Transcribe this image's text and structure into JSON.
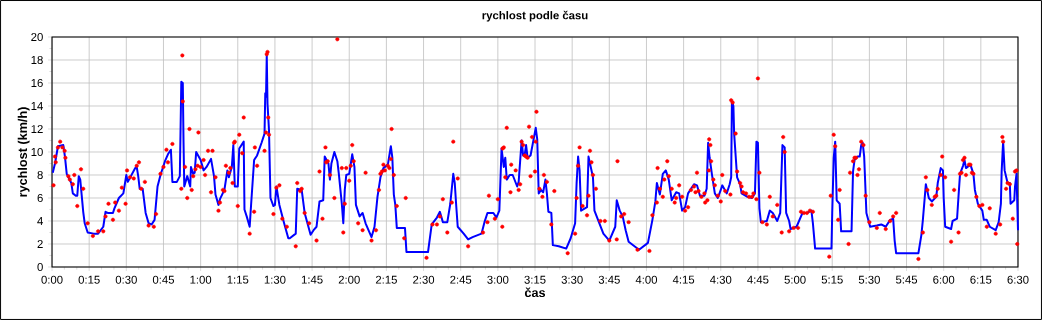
{
  "chart_data": {
    "type": "line",
    "title": "rychlost podle času",
    "xlabel": "čas",
    "ylabel": "rychlost (km/h)",
    "xlim": [
      0,
      6.5
    ],
    "ylim": [
      0,
      20
    ],
    "xticks": [
      {
        "value": 0,
        "label": "0:00"
      },
      {
        "value": 0.25,
        "label": "0:15"
      },
      {
        "value": 0.5,
        "label": "0:30"
      },
      {
        "value": 0.75,
        "label": "0:45"
      },
      {
        "value": 1,
        "label": "1:00"
      },
      {
        "value": 1.25,
        "label": "1:15"
      },
      {
        "value": 1.5,
        "label": "1:30"
      },
      {
        "value": 1.75,
        "label": "1:45"
      },
      {
        "value": 2,
        "label": "2:00"
      },
      {
        "value": 2.25,
        "label": "2:15"
      },
      {
        "value": 2.5,
        "label": "2:30"
      },
      {
        "value": 2.75,
        "label": "2:45"
      },
      {
        "value": 3,
        "label": "3:00"
      },
      {
        "value": 3.25,
        "label": "3:15"
      },
      {
        "value": 3.5,
        "label": "3:30"
      },
      {
        "value": 3.75,
        "label": "3:45"
      },
      {
        "value": 4,
        "label": "4:00"
      },
      {
        "value": 4.25,
        "label": "4:15"
      },
      {
        "value": 4.5,
        "label": "4:30"
      },
      {
        "value": 4.75,
        "label": "4:45"
      },
      {
        "value": 5,
        "label": "5:00"
      },
      {
        "value": 5.25,
        "label": "5:15"
      },
      {
        "value": 5.5,
        "label": "5:30"
      },
      {
        "value": 5.75,
        "label": "5:45"
      },
      {
        "value": 6,
        "label": "6:00"
      },
      {
        "value": 6.25,
        "label": "6:15"
      },
      {
        "value": 6.5,
        "label": "6:30"
      }
    ],
    "yticks": [
      0,
      2,
      4,
      6,
      8,
      10,
      12,
      14,
      16,
      18,
      20
    ],
    "grid": true,
    "series": [
      {
        "color": "#0000ff",
        "line_style": "solid",
        "x": [
          0.005,
          0.02,
          0.04,
          0.076,
          0.087,
          0.099,
          0.13,
          0.14,
          0.16,
          0.17,
          0.18,
          0.19,
          0.21,
          0.22,
          0.24,
          0.28,
          0.31,
          0.345,
          0.36,
          0.375,
          0.41,
          0.42,
          0.45,
          0.48,
          0.5,
          0.51,
          0.56,
          0.57,
          0.58,
          0.59,
          0.61,
          0.63,
          0.65,
          0.67,
          0.69,
          0.71,
          0.73,
          0.76,
          0.78,
          0.8,
          0.81,
          0.84,
          0.86,
          0.87,
          0.88,
          0.885,
          0.89,
          0.91,
          0.93,
          0.935,
          0.95,
          0.96,
          0.97,
          1.0,
          1.02,
          1.04,
          1.07,
          1.09,
          1.1,
          1.12,
          1.13,
          1.16,
          1.18,
          1.19,
          1.21,
          1.22,
          1.23,
          1.25,
          1.26,
          1.29,
          1.295,
          1.31,
          1.33,
          1.34,
          1.36,
          1.38,
          1.41,
          1.43,
          1.435,
          1.44,
          1.445,
          1.45,
          1.46,
          1.47,
          1.49,
          1.5,
          1.51,
          1.53,
          1.56,
          1.59,
          1.6,
          1.64,
          1.65,
          1.68,
          1.7,
          1.74,
          1.76,
          1.78,
          1.8,
          1.825,
          1.835,
          1.86,
          1.87,
          1.88,
          1.9,
          1.92,
          1.93,
          1.95,
          1.96,
          1.97,
          1.98,
          2.0,
          2.02,
          2.035,
          2.045,
          2.07,
          2.09,
          2.11,
          2.15,
          2.17,
          2.19,
          2.21,
          2.23,
          2.26,
          2.28,
          2.29,
          2.3,
          2.31,
          2.32,
          2.375,
          2.385,
          2.53,
          2.555,
          2.59,
          2.61,
          2.63,
          2.66,
          2.68,
          2.7,
          2.71,
          2.72,
          2.73,
          2.77,
          2.8,
          2.83,
          2.89,
          2.91,
          2.93,
          2.97,
          2.99,
          3.01,
          3.025,
          3.04,
          3.05,
          3.06,
          3.08,
          3.1,
          3.13,
          3.14,
          3.16,
          3.17,
          3.18,
          3.19,
          3.2,
          3.22,
          3.255,
          3.265,
          3.275,
          3.29,
          3.305,
          3.32,
          3.33,
          3.34,
          3.36,
          3.37,
          3.41,
          3.46,
          3.49,
          3.52,
          3.53,
          3.54,
          3.55,
          3.56,
          3.6,
          3.61,
          3.62,
          3.64,
          3.65,
          3.68,
          3.71,
          3.75,
          3.79,
          3.8,
          3.82,
          3.84,
          3.86,
          3.88,
          3.95,
          4.01,
          4.04,
          4.06,
          4.07,
          4.09,
          4.11,
          4.13,
          4.15,
          4.17,
          4.2,
          4.22,
          4.24,
          4.26,
          4.28,
          4.32,
          4.34,
          4.36,
          4.39,
          4.405,
          4.415,
          4.425,
          4.44,
          4.46,
          4.48,
          4.5,
          4.51,
          4.54,
          4.56,
          4.57,
          4.575,
          4.585,
          4.59,
          4.61,
          4.63,
          4.64,
          4.68,
          4.71,
          4.73,
          4.74,
          4.75,
          4.76,
          4.77,
          4.81,
          4.83,
          4.85,
          4.88,
          4.9,
          4.915,
          4.93,
          4.94,
          4.96,
          4.97,
          5.01,
          5.05,
          5.08,
          5.11,
          5.12,
          5.135,
          5.245,
          5.25,
          5.26,
          5.27,
          5.28,
          5.3,
          5.31,
          5.38,
          5.39,
          5.4,
          5.42,
          5.435,
          5.445,
          5.455,
          5.465,
          5.48,
          5.505,
          5.55,
          5.58,
          5.61,
          5.64,
          5.66,
          5.67,
          5.68,
          5.83,
          5.85,
          5.86,
          5.88,
          5.89,
          5.9,
          5.92,
          5.95,
          5.96,
          5.98,
          5.995,
          6.0,
          6.01,
          6.05,
          6.06,
          6.09,
          6.1,
          6.11,
          6.13,
          6.14,
          6.15,
          6.18,
          6.2,
          6.21,
          6.23,
          6.26,
          6.27,
          6.29,
          6.31,
          6.35,
          6.37,
          6.385,
          6.39,
          6.4,
          6.41,
          6.43,
          6.445,
          6.45,
          6.475,
          6.48,
          6.49,
          6.5
        ],
        "values": [
          8.2,
          9.0,
          10.5,
          10.6,
          9.6,
          8.1,
          7.3,
          6.4,
          6.2,
          6.2,
          7.9,
          7.6,
          4.8,
          3.8,
          3.0,
          2.9,
          2.9,
          3.5,
          4.8,
          4.7,
          4.7,
          5.1,
          6.0,
          6.4,
          8.0,
          7.4,
          8.6,
          8.7,
          7.9,
          6.8,
          6.8,
          4.7,
          3.8,
          3.7,
          4.1,
          7.0,
          8.0,
          9.2,
          9.8,
          10.2,
          7.4,
          7.4,
          7.9,
          16.1,
          16.0,
          10.8,
          7.0,
          7.9,
          7.0,
          8.7,
          8.1,
          8.2,
          10.0,
          9.3,
          8.4,
          8.7,
          9.4,
          7.9,
          6.3,
          5.4,
          5.9,
          6.7,
          8.4,
          7.8,
          8.7,
          10.6,
          7.0,
          7.0,
          10.3,
          10.9,
          5.0,
          4.4,
          3.5,
          5.5,
          9.3,
          9.7,
          10.8,
          11.6,
          15.1,
          14.8,
          18.4,
          14.2,
          11.9,
          6.0,
          5.3,
          5.4,
          7.0,
          5.4,
          3.9,
          2.5,
          2.5,
          2.9,
          6.8,
          6.7,
          4.7,
          2.8,
          3.2,
          3.5,
          5.7,
          5.8,
          9.6,
          9.0,
          7.6,
          9.0,
          10.0,
          9.2,
          8.1,
          5.5,
          3.8,
          6.7,
          8.0,
          8.1,
          9.8,
          8.7,
          5.4,
          4.4,
          4.7,
          3.8,
          2.6,
          3.5,
          6.1,
          7.8,
          8.6,
          8.9,
          10.5,
          9.5,
          6.3,
          5.4,
          3.4,
          3.4,
          1.3,
          1.3,
          3.7,
          4.3,
          4.8,
          3.9,
          3.9,
          5.5,
          8.1,
          7.3,
          5.3,
          3.5,
          2.9,
          2.4,
          2.6,
          2.9,
          3.9,
          4.7,
          4.7,
          4.3,
          4.9,
          10.3,
          8.7,
          9.5,
          7.6,
          8.0,
          8.0,
          7.0,
          7.4,
          11.0,
          9.7,
          9.7,
          10.6,
          9.5,
          9.7,
          12.1,
          11.1,
          6.4,
          6.7,
          6.5,
          7.6,
          6.4,
          4.8,
          4.7,
          1.9,
          1.8,
          1.6,
          2.5,
          3.8,
          7.3,
          9.6,
          8.4,
          4.9,
          5.2,
          9.6,
          9.0,
          7.8,
          4.9,
          3.9,
          2.9,
          2.3,
          3.5,
          5.8,
          4.9,
          4.4,
          3.2,
          2.2,
          1.5,
          2.1,
          4.1,
          5.7,
          7.3,
          6.3,
          8.1,
          8.4,
          7.6,
          5.8,
          6.5,
          6.4,
          4.9,
          5.2,
          6.4,
          7.2,
          7.1,
          6.2,
          6.2,
          6.8,
          10.8,
          9.5,
          8.1,
          6.4,
          6.0,
          6.7,
          7.1,
          6.4,
          7.2,
          7.8,
          14.4,
          14.0,
          11.6,
          7.8,
          7.2,
          6.4,
          6.1,
          6.0,
          6.4,
          10.9,
          10.8,
          5.1,
          3.9,
          4.0,
          4.9,
          4.7,
          4.0,
          4.7,
          10.6,
          10.4,
          4.7,
          4.0,
          3.3,
          3.5,
          4.7,
          4.7,
          4.9,
          3.8,
          1.6,
          1.6,
          4.7,
          9.5,
          10.9,
          5.8,
          5.5,
          3.1,
          3.1,
          8.3,
          9.3,
          9.6,
          9.6,
          10.6,
          10.8,
          9.6,
          4.7,
          3.5,
          3.6,
          3.7,
          3.5,
          4.1,
          4.2,
          2.3,
          1.2,
          1.2,
          2.8,
          4.1,
          7.2,
          6.6,
          6.0,
          5.7,
          6.1,
          7.3,
          8.6,
          8.4,
          6.0,
          3.5,
          3.3,
          4.0,
          4.2,
          6.2,
          8.1,
          8.8,
          9.3,
          8.6,
          8.9,
          8.1,
          6.7,
          5.5,
          4.9,
          4.1,
          4.1,
          3.5,
          3.2,
          3.9,
          5.5,
          8.3,
          10.9,
          8.4,
          7.3,
          7.3,
          5.5,
          5.8,
          7.0,
          8.1,
          3.2
        ]
      },
      {
        "type": "scatter",
        "color": "#ff0000",
        "marker": "circle",
        "x": [
          0.01,
          0.02,
          0.025,
          0.04,
          0.055,
          0.07,
          0.085,
          0.09,
          0.11,
          0.12,
          0.14,
          0.15,
          0.17,
          0.195,
          0.21,
          0.24,
          0.275,
          0.31,
          0.345,
          0.36,
          0.38,
          0.41,
          0.425,
          0.45,
          0.47,
          0.495,
          0.505,
          0.525,
          0.55,
          0.57,
          0.585,
          0.6,
          0.625,
          0.65,
          0.685,
          0.7,
          0.73,
          0.75,
          0.77,
          0.78,
          0.81,
          0.87,
          0.877,
          0.88,
          0.895,
          0.91,
          0.925,
          0.94,
          0.95,
          0.965,
          0.98,
          0.985,
          1.0,
          1.02,
          1.03,
          1.05,
          1.07,
          1.08,
          1.1,
          1.12,
          1.13,
          1.15,
          1.16,
          1.17,
          1.19,
          1.2,
          1.215,
          1.225,
          1.23,
          1.25,
          1.26,
          1.28,
          1.29,
          1.33,
          1.36,
          1.365,
          1.38,
          1.43,
          1.44,
          1.445,
          1.45,
          1.455,
          1.46,
          1.49,
          1.51,
          1.53,
          1.55,
          1.58,
          1.64,
          1.65,
          1.67,
          1.68,
          1.7,
          1.73,
          1.78,
          1.8,
          1.82,
          1.84,
          1.845,
          1.855,
          1.87,
          1.9,
          1.92,
          1.95,
          1.96,
          1.97,
          1.98,
          2.0,
          2.01,
          2.02,
          2.03,
          2.06,
          2.09,
          2.11,
          2.15,
          2.18,
          2.2,
          2.21,
          2.22,
          2.23,
          2.24,
          2.26,
          2.27,
          2.28,
          2.285,
          2.3,
          2.32,
          2.37,
          2.38,
          2.52,
          2.56,
          2.59,
          2.61,
          2.63,
          2.66,
          2.69,
          2.7,
          2.73,
          2.8,
          2.9,
          2.93,
          2.94,
          2.98,
          3.0,
          3.03,
          3.032,
          3.04,
          3.05,
          3.06,
          3.085,
          3.09,
          3.12,
          3.14,
          3.15,
          3.16,
          3.17,
          3.18,
          3.19,
          3.2,
          3.21,
          3.22,
          3.23,
          3.25,
          3.255,
          3.26,
          3.28,
          3.3,
          3.31,
          3.33,
          3.36,
          3.38,
          3.47,
          3.52,
          3.53,
          3.54,
          3.55,
          3.57,
          3.6,
          3.61,
          3.62,
          3.63,
          3.64,
          3.66,
          3.69,
          3.72,
          3.75,
          3.8,
          3.805,
          3.83,
          3.85,
          3.88,
          3.94,
          4.02,
          4.04,
          4.07,
          4.075,
          4.09,
          4.11,
          4.12,
          4.14,
          4.15,
          4.17,
          4.19,
          4.2,
          4.22,
          4.24,
          4.26,
          4.28,
          4.3,
          4.32,
          4.33,
          4.34,
          4.35,
          4.37,
          4.39,
          4.395,
          4.41,
          4.42,
          4.422,
          4.43,
          4.435,
          4.45,
          4.46,
          4.48,
          4.5,
          4.51,
          4.53,
          4.565,
          4.57,
          4.58,
          4.6,
          4.61,
          4.63,
          4.64,
          4.65,
          4.67,
          4.69,
          4.71,
          4.72,
          4.74,
          4.75,
          4.76,
          4.78,
          4.81,
          4.83,
          4.85,
          4.88,
          4.91,
          4.92,
          4.93,
          4.96,
          4.99,
          5.02,
          5.04,
          5.06,
          5.08,
          5.1,
          5.12,
          5.23,
          5.24,
          5.26,
          5.27,
          5.29,
          5.3,
          5.36,
          5.37,
          5.39,
          5.4,
          5.41,
          5.42,
          5.43,
          5.445,
          5.46,
          5.475,
          5.5,
          5.55,
          5.57,
          5.61,
          5.64,
          5.66,
          5.68,
          5.83,
          5.86,
          5.88,
          5.89,
          5.92,
          5.94,
          5.95,
          5.96,
          5.98,
          5.99,
          6.01,
          6.05,
          6.07,
          6.1,
          6.11,
          6.12,
          6.13,
          6.14,
          6.15,
          6.17,
          6.18,
          6.19,
          6.2,
          6.22,
          6.24,
          6.26,
          6.29,
          6.31,
          6.35,
          6.38,
          6.395,
          6.4,
          6.42,
          6.43,
          6.445,
          6.465,
          6.48,
          6.49,
          6.495
        ],
        "values": [
          7.1,
          9.6,
          9.1,
          10.4,
          10.9,
          10.4,
          10.1,
          9.5,
          7.9,
          7.6,
          7.2,
          8.0,
          5.3,
          8.5,
          6.8,
          3.8,
          2.7,
          3.1,
          3.1,
          4.4,
          5.5,
          4.1,
          5.6,
          4.9,
          6.9,
          5.5,
          8.4,
          7.8,
          7.7,
          8.8,
          9.1,
          6.8,
          7.4,
          3.6,
          3.5,
          4.6,
          8.1,
          8.7,
          10.2,
          9.1,
          10.7,
          6.8,
          18.4,
          14.4,
          8.7,
          6.0,
          12.0,
          6.7,
          7.9,
          8.5,
          8.8,
          11.7,
          8.7,
          9.3,
          8.0,
          10.1,
          6.5,
          10.1,
          7.8,
          4.9,
          5.6,
          6.7,
          6.6,
          8.8,
          8.2,
          8.6,
          7.3,
          10.8,
          10.9,
          5.3,
          11.5,
          9.9,
          13.0,
          2.9,
          4.8,
          10.4,
          8.8,
          10.1,
          11.7,
          18.5,
          18.7,
          13.0,
          11.5,
          4.6,
          6.9,
          7.1,
          4.2,
          3.5,
          1.8,
          7.3,
          6.6,
          6.8,
          4.7,
          3.8,
          2.3,
          8.3,
          4.2,
          10.4,
          9.1,
          9.2,
          8.0,
          6.0,
          19.8,
          8.6,
          3.0,
          5.5,
          8.6,
          7.5,
          8.8,
          10.6,
          9.2,
          3.8,
          3.2,
          8.2,
          2.3,
          3.2,
          6.7,
          8.1,
          8.3,
          8.9,
          8.4,
          8.8,
          8.6,
          9.4,
          12.0,
          8.0,
          5.3,
          2.5,
          6.0,
          0.8,
          3.7,
          3.7,
          4.4,
          5.9,
          3.0,
          5.6,
          10.9,
          7.7,
          1.8,
          3.0,
          3.9,
          6.2,
          4.2,
          5.9,
          3.5,
          10.3,
          10.4,
          7.8,
          12.1,
          6.5,
          8.9,
          8.4,
          6.7,
          7.2,
          10.9,
          10.6,
          9.7,
          9.6,
          9.5,
          12.2,
          7.9,
          11.3,
          8.3,
          10.9,
          13.5,
          6.8,
          6.1,
          8.0,
          7.4,
          3.7,
          6.6,
          1.2,
          2.9,
          6.0,
          8.8,
          10.4,
          5.3,
          4.5,
          6.2,
          10.1,
          9.1,
          8.0,
          6.8,
          4.0,
          4.0,
          2.3,
          2.4,
          9.2,
          4.4,
          4.6,
          3.9,
          1.5,
          1.4,
          4.5,
          5.6,
          8.6,
          6.8,
          6.1,
          7.6,
          9.2,
          7.9,
          6.8,
          5.6,
          6.0,
          7.1,
          6.1,
          4.9,
          5.2,
          6.7,
          7.0,
          6.5,
          8.2,
          6.6,
          6.1,
          6.4,
          5.6,
          5.8,
          8.4,
          11.1,
          10.6,
          9.2,
          7.6,
          7.1,
          6.2,
          5.7,
          8.0,
          6.6,
          6.3,
          14.5,
          14.3,
          11.6,
          8.3,
          7.3,
          7.0,
          6.5,
          6.4,
          6.1,
          6.1,
          6.4,
          5.9,
          16.4,
          8.2,
          3.9,
          3.7,
          6.1,
          4.4,
          5.4,
          3.0,
          11.3,
          10.0,
          3.1,
          3.4,
          3.4,
          4.8,
          4.7,
          4.7,
          4.9,
          4.8,
          0.9,
          6.2,
          11.5,
          10.5,
          4.1,
          6.7,
          2.0,
          8.2,
          9.2,
          9.5,
          9.5,
          8.0,
          8.5,
          10.9,
          10.6,
          6.2,
          3.9,
          3.4,
          4.7,
          3.3,
          4.0,
          4.4,
          4.7,
          0.7,
          3.0,
          7.8,
          6.7,
          5.4,
          6.1,
          6.2,
          6.8,
          8.0,
          9.6,
          7.8,
          2.2,
          6.7,
          3.0,
          8.1,
          8.2,
          9.3,
          9.5,
          8.0,
          8.9,
          8.9,
          8.2,
          8.1,
          6.1,
          5.3,
          5.4,
          3.5,
          5.1,
          2.9,
          3.7,
          11.3,
          10.9,
          6.8,
          7.3,
          7.2,
          4.2,
          8.3,
          8.4,
          2.0
        ]
      }
    ]
  }
}
